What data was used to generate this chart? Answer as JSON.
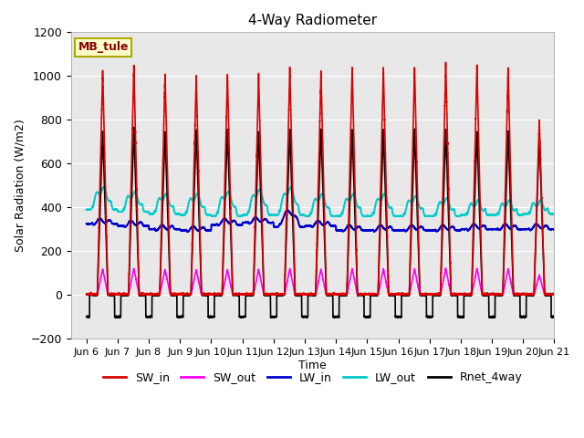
{
  "title": "4-Way Radiometer",
  "xlabel": "Time",
  "ylabel": "Solar Radiation (W/m2)",
  "ylim": [
    -200,
    1200
  ],
  "xlim_days": [
    5.5,
    21.0
  ],
  "xtick_days": [
    6,
    7,
    8,
    9,
    10,
    11,
    12,
    13,
    14,
    15,
    16,
    17,
    18,
    19,
    20,
    21
  ],
  "xtick_labels": [
    "Jun 6",
    "Jun 7",
    "Jun 8",
    "Jun 9",
    "Jun 10",
    "Jun 11",
    "Jun 12",
    "Jun 13",
    "Jun 14",
    "Jun 15",
    "Jun 16",
    "Jun 17",
    "Jun 18",
    "Jun 19",
    "Jun 20",
    "Jun 21"
  ],
  "station_label": "MB_tule",
  "background_color": "#e8e8e8",
  "lines": {
    "SW_in": {
      "color": "#dd0000",
      "lw": 1.2
    },
    "SW_out": {
      "color": "#ff00ff",
      "lw": 1.2
    },
    "LW_in": {
      "color": "#0000cc",
      "lw": 1.5
    },
    "LW_out": {
      "color": "#00cccc",
      "lw": 1.5
    },
    "Rnet_4way": {
      "color": "#000000",
      "lw": 1.2
    }
  },
  "n_days": 15,
  "day_start": 6,
  "figsize": [
    6.4,
    4.8
  ],
  "dpi": 100,
  "sw_in_peaks": [
    1030,
    1050,
    1010,
    1000,
    1010,
    1010,
    1040,
    1020,
    1040,
    1040,
    1040,
    1060,
    1050,
    1040,
    800
  ],
  "rnet_peaks": [
    750,
    770,
    750,
    760,
    760,
    750,
    760,
    760,
    760,
    760,
    760,
    760,
    750,
    750,
    730
  ],
  "lw_out_day": [
    480,
    460,
    450,
    450,
    460,
    470,
    480,
    450,
    450,
    450,
    440,
    430,
    420,
    420,
    420
  ],
  "lw_out_night": [
    390,
    380,
    370,
    365,
    360,
    365,
    365,
    360,
    360,
    360,
    360,
    360,
    365,
    365,
    370
  ],
  "lw_in_day": [
    340,
    330,
    310,
    305,
    340,
    345,
    380,
    330,
    310,
    310,
    310,
    310,
    315,
    315,
    315
  ],
  "lw_in_night": [
    325,
    315,
    300,
    295,
    320,
    330,
    310,
    315,
    295,
    295,
    295,
    295,
    300,
    300,
    300
  ]
}
